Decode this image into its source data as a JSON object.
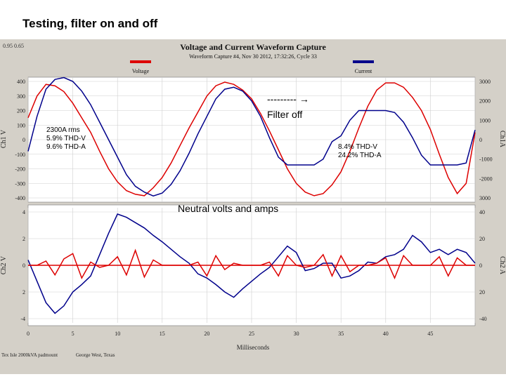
{
  "slide_title": "Testing, filter on and off",
  "capture": {
    "title": "Voltage and Current Waveform Capture",
    "subtitle": "Waveform Capture #4, Nov 30 2012, 17:32:26, Cycle 33",
    "corner_values": "0.95    0.65",
    "legend": [
      {
        "name": "Voltage",
        "color": "#dd0000"
      },
      {
        "name": "Current",
        "color": "#00008b"
      }
    ],
    "footer_left": "Tex Isle 2000kVA padmount",
    "footer_right": "George West, Texas"
  },
  "annotations": {
    "arrow_text": "--------- ",
    "arrow_glyph": "→",
    "filter_off": "Filter off",
    "left_box": [
      "2300A rms",
      "5.9% THD-V",
      "9.6% THD-A"
    ],
    "right_box": [
      "8.4% THD-V",
      "24.2% THD-A"
    ],
    "neutral_label": "Neutral volts and amps"
  },
  "chart_data": [
    {
      "type": "line",
      "xlabel": "",
      "ylabel": "Ch1 V",
      "y2label": "Ch1A",
      "xlim": [
        0,
        50
      ],
      "ylim": [
        -400,
        400
      ],
      "y2lim": [
        -3000,
        3000
      ],
      "yticks": [
        "400",
        "300",
        "200",
        "100",
        "0",
        "-100",
        "-200",
        "-300",
        "-400"
      ],
      "y2ticks": [
        "3000",
        "2000",
        "1000",
        "0",
        "-1000",
        "-2000",
        "3000"
      ],
      "series": [
        {
          "name": "Voltage",
          "color": "#dd0000",
          "axis": "left",
          "x": [
            0,
            1,
            2,
            3,
            4,
            5,
            6,
            7,
            8,
            9,
            10,
            11,
            12,
            13,
            14,
            15,
            16,
            17,
            18,
            19,
            20,
            21,
            22,
            23,
            24,
            25,
            26,
            27,
            28,
            29,
            30,
            31,
            32,
            33,
            34,
            35,
            36,
            37,
            38,
            39,
            40,
            41,
            42,
            43,
            44,
            45,
            46,
            47,
            48,
            49,
            50
          ],
          "values": [
            150,
            300,
            380,
            370,
            330,
            250,
            150,
            50,
            -80,
            -200,
            -290,
            -350,
            -375,
            -385,
            -330,
            -260,
            -160,
            -40,
            80,
            190,
            300,
            370,
            395,
            380,
            340,
            280,
            180,
            60,
            -70,
            -200,
            -300,
            -360,
            -385,
            -370,
            -310,
            -220,
            -80,
            80,
            230,
            340,
            390,
            390,
            360,
            290,
            200,
            70,
            -100,
            -260,
            -370,
            -300,
            50
          ]
        },
        {
          "name": "Current",
          "color": "#00008b",
          "axis": "right",
          "x": [
            0,
            1,
            2,
            3,
            4,
            5,
            6,
            7,
            8,
            9,
            10,
            11,
            12,
            13,
            14,
            15,
            16,
            17,
            18,
            19,
            20,
            21,
            22,
            23,
            24,
            25,
            26,
            27,
            28,
            29,
            30,
            31,
            32,
            33,
            34,
            35,
            36,
            37,
            38,
            39,
            40,
            41,
            42,
            43,
            44,
            45,
            46,
            47,
            48,
            49,
            50
          ],
          "values": [
            -600,
            1200,
            2600,
            3100,
            3200,
            3000,
            2500,
            1800,
            900,
            0,
            -900,
            -1800,
            -2400,
            -2700,
            -2900,
            -2750,
            -2300,
            -1600,
            -700,
            300,
            1200,
            2100,
            2600,
            2700,
            2500,
            2000,
            1200,
            100,
            -900,
            -1300,
            -1300,
            -1300,
            -1300,
            -1000,
            -100,
            200,
            1000,
            1500,
            1500,
            1500,
            1500,
            1400,
            900,
            100,
            -800,
            -1300,
            -1300,
            -1300,
            -1300,
            -1200,
            500
          ]
        }
      ]
    },
    {
      "type": "line",
      "xlabel": "Milliseconds",
      "ylabel": "Ch2 V",
      "y2label": "Ch2 A",
      "xlim": [
        0,
        50
      ],
      "ylim": [
        -5,
        5
      ],
      "y2lim": [
        -50,
        50
      ],
      "xticks": [
        "0",
        "5",
        "10",
        "15",
        "20",
        "25",
        "30",
        "35",
        "40",
        "45"
      ],
      "yticks": [
        "4",
        "2",
        "0",
        "2",
        "-4"
      ],
      "y2ticks": [
        "40",
        "20",
        "0",
        "20",
        "-40"
      ],
      "series": [
        {
          "name": "",
          "color": "#00008b",
          "axis": "right",
          "x": [
            0,
            1,
            2,
            3,
            4,
            5,
            6,
            7,
            8,
            9,
            10,
            11,
            12,
            13,
            14,
            15,
            16,
            17,
            18,
            19,
            20,
            21,
            22,
            23,
            24,
            25,
            26,
            27,
            28,
            29,
            30,
            31,
            32,
            33,
            34,
            35,
            36,
            37,
            38,
            39,
            40,
            41,
            42,
            43,
            44,
            45,
            46,
            47,
            48,
            49,
            50
          ],
          "values": [
            5,
            -15,
            -35,
            -45,
            -38,
            -25,
            -18,
            -10,
            10,
            30,
            48,
            45,
            40,
            35,
            28,
            22,
            15,
            8,
            2,
            -8,
            -12,
            -18,
            -25,
            -30,
            -22,
            -15,
            -8,
            -2,
            8,
            18,
            12,
            -5,
            -3,
            2,
            2,
            -12,
            -10,
            -5,
            3,
            2,
            8,
            10,
            15,
            28,
            22,
            12,
            15,
            10,
            15,
            12,
            2
          ]
        },
        {
          "name": "",
          "color": "#dd0000",
          "axis": "left",
          "x": [
            0,
            1,
            2,
            3,
            4,
            5,
            6,
            7,
            8,
            9,
            10,
            11,
            12,
            13,
            14,
            15,
            16,
            17,
            18,
            19,
            20,
            21,
            22,
            23,
            24,
            25,
            26,
            27,
            28,
            29,
            30,
            31,
            32,
            33,
            34,
            35,
            36,
            37,
            38,
            39,
            40,
            41,
            42,
            43,
            44,
            45,
            46,
            47,
            48,
            49,
            50
          ],
          "values": [
            0,
            0,
            0.4,
            -0.9,
            0.6,
            1.1,
            -1.2,
            0.3,
            -0.2,
            0,
            0.8,
            -0.9,
            1.4,
            -1.1,
            0.5,
            0,
            0,
            0,
            0,
            0.3,
            -1,
            0.9,
            -0.4,
            0.2,
            0,
            0,
            0,
            0.3,
            -1,
            0.9,
            0,
            -0.2,
            0,
            1,
            -1,
            0.9,
            -0.6,
            0,
            0,
            0.2,
            0.7,
            -1.2,
            0.9,
            0,
            0,
            0,
            0.8,
            -1,
            0.7,
            0,
            0
          ]
        }
      ]
    }
  ]
}
